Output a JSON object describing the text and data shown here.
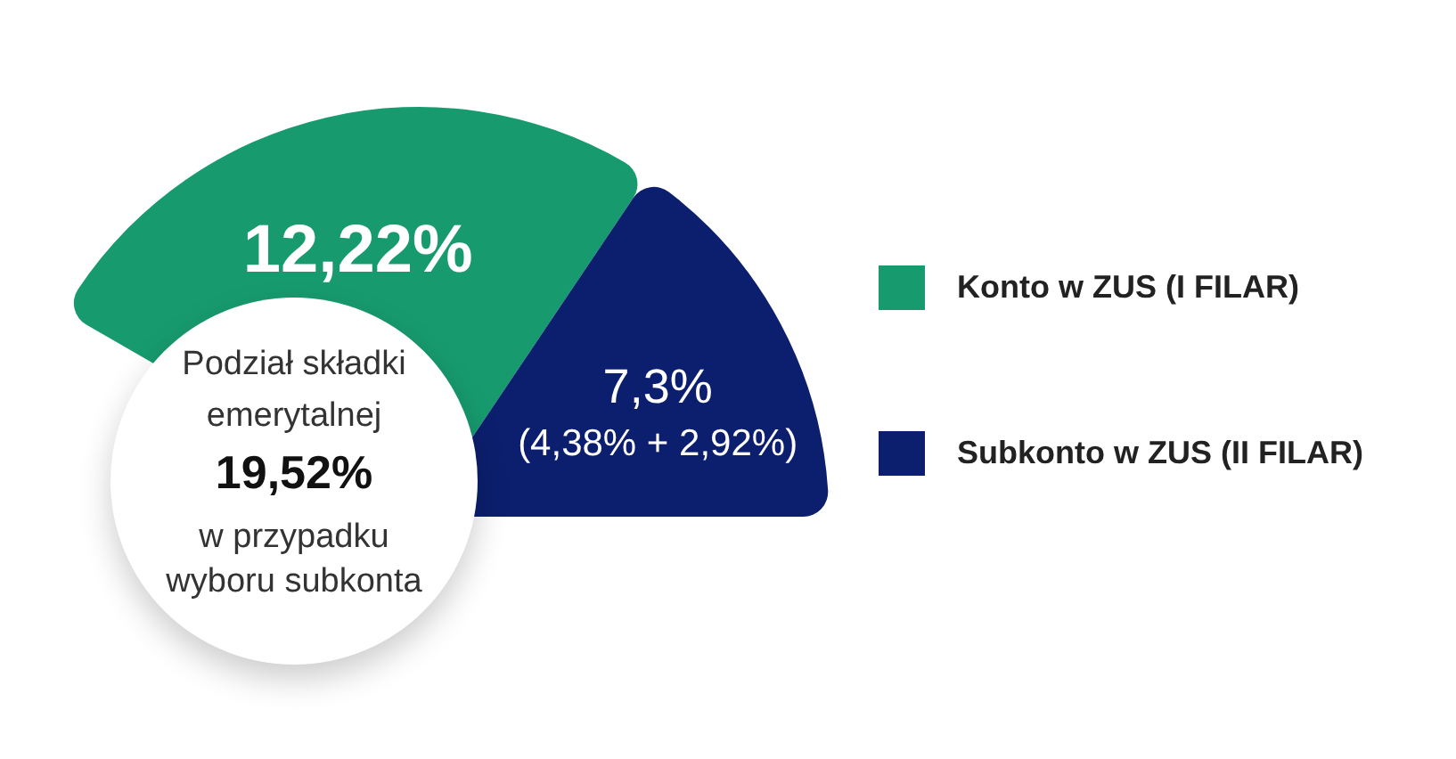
{
  "chart_data": {
    "type": "pie",
    "title": "Podział składki emerytalnej",
    "subtitle": "w przypadku wyboru subkonta",
    "categories": [
      "Konto w ZUS (I FILAR)",
      "Subkonto w ZUS (II FILAR)"
    ],
    "values": [
      12.22,
      7.3
    ],
    "colors": [
      "#179b6e",
      "#0c1f6e"
    ],
    "value_labels": [
      "12,22%",
      "7,3%"
    ],
    "annotations": [
      {
        "text": "(4,38% + 2,92%)",
        "x": "Subkonto w ZUS (II FILAR)"
      },
      "19,52%"
    ],
    "legend": "right"
  }
}
